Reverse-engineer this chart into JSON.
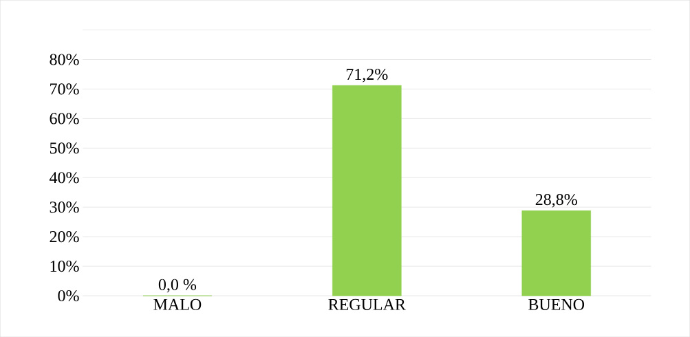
{
  "chart_data": {
    "type": "bar",
    "categories": [
      "MALO",
      "REGULAR",
      "BUENO"
    ],
    "values": [
      0,
      71.2,
      28.8
    ],
    "value_labels": [
      "0,0 %",
      "71,2%",
      "28,8%"
    ],
    "color": "#92d050",
    "ylim": [
      0,
      90
    ],
    "yticks": [
      {
        "value": 0,
        "label": "0%"
      },
      {
        "value": 10,
        "label": "10%"
      },
      {
        "value": 20,
        "label": "20%"
      },
      {
        "value": 30,
        "label": "30%"
      },
      {
        "value": 40,
        "label": "40%"
      },
      {
        "value": 50,
        "label": "50%"
      },
      {
        "value": 60,
        "label": "60%"
      },
      {
        "value": 70,
        "label": "70%"
      },
      {
        "value": 80,
        "label": "80%"
      },
      {
        "value": 90,
        "label": null
      }
    ],
    "grid": "y"
  }
}
